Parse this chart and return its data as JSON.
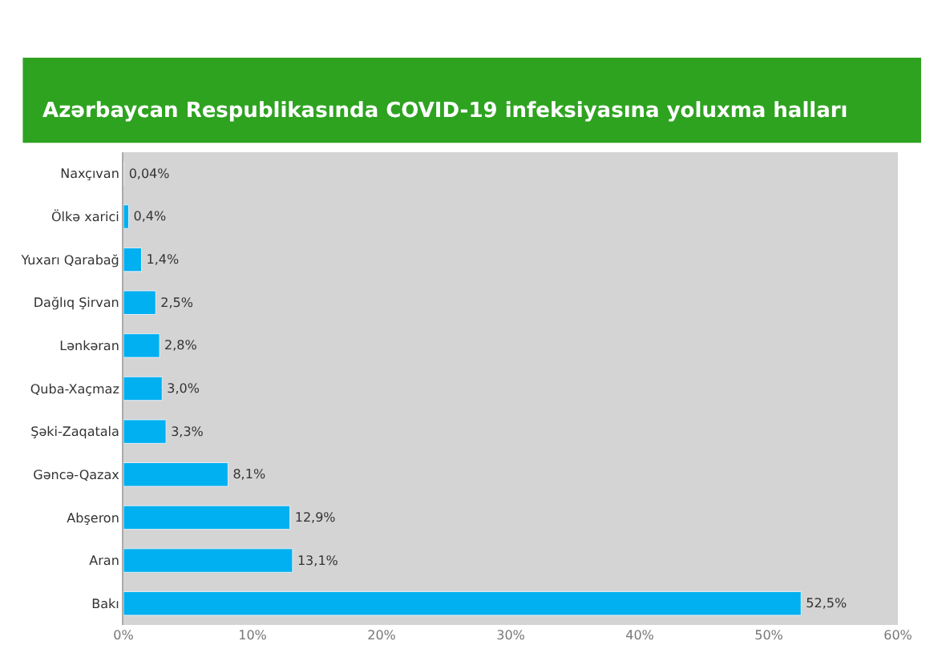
{
  "chart_data": {
    "type": "bar",
    "orientation": "horizontal",
    "title": "Azərbaycan Respublikasında COVID-19 infeksiyasına yoluxma halları",
    "categories": [
      "Naxçıvan",
      "Ölkə xarici",
      "Yuxarı Qarabağ",
      "Dağlıq Şirvan",
      "Lənkəran",
      "Quba-Xaçmaz",
      "Şəki-Zaqatala",
      "Gəncə-Qazax",
      "Abşeron",
      "Aran",
      "Bakı"
    ],
    "values": [
      0.04,
      0.4,
      1.4,
      2.5,
      2.8,
      3.0,
      3.3,
      8.1,
      12.9,
      13.1,
      52.5
    ],
    "value_labels": [
      "0,04%",
      "0,4%",
      "1,4%",
      "2,5%",
      "2,8%",
      "3,0%",
      "3,3%",
      "8,1%",
      "12,9%",
      "13,1%",
      "52,5%"
    ],
    "color": "#00b0f0",
    "xlim": [
      0,
      60
    ],
    "xticks": [
      {
        "value": 0,
        "label": "0%"
      },
      {
        "value": 10,
        "label": "10%"
      },
      {
        "value": 20,
        "label": "20%"
      },
      {
        "value": 30,
        "label": "30%"
      },
      {
        "value": 40,
        "label": "40%"
      },
      {
        "value": 50,
        "label": "50%"
      },
      {
        "value": 60,
        "label": "60%"
      }
    ],
    "grid": false,
    "legend": false
  }
}
